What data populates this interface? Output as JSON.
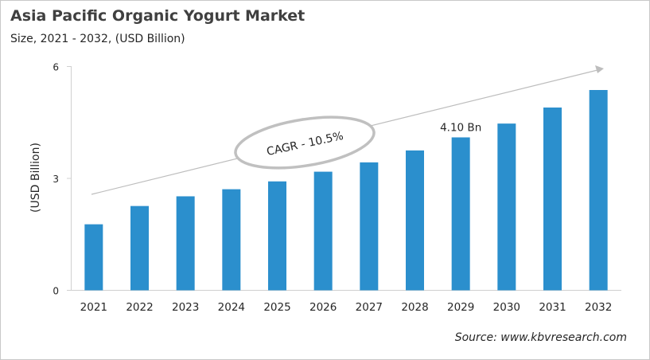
{
  "chart_data": {
    "type": "bar",
    "title": "Asia Pacific Organic Yogurt Market",
    "subtitle": "Size, 2021 - 2032, (USD Billion)",
    "xlabel": "",
    "ylabel": "(USD Billion)",
    "ylim": [
      0,
      6
    ],
    "yticks": [
      "0",
      "3",
      "6"
    ],
    "grid": false,
    "categories": [
      "2021",
      "2022",
      "2023",
      "2024",
      "2025",
      "2026",
      "2027",
      "2028",
      "2029",
      "2030",
      "2031",
      "2032"
    ],
    "values": [
      1.77,
      2.26,
      2.52,
      2.71,
      2.92,
      3.18,
      3.43,
      3.75,
      4.1,
      4.47,
      4.9,
      5.37
    ],
    "bar_color": "#2b8fcd",
    "data_labels": [
      {
        "category": "2029",
        "text": "4.10 Bn"
      }
    ],
    "annotation": "CAGR - 10.5%",
    "source": "Source: www.kbvresearch.com"
  }
}
